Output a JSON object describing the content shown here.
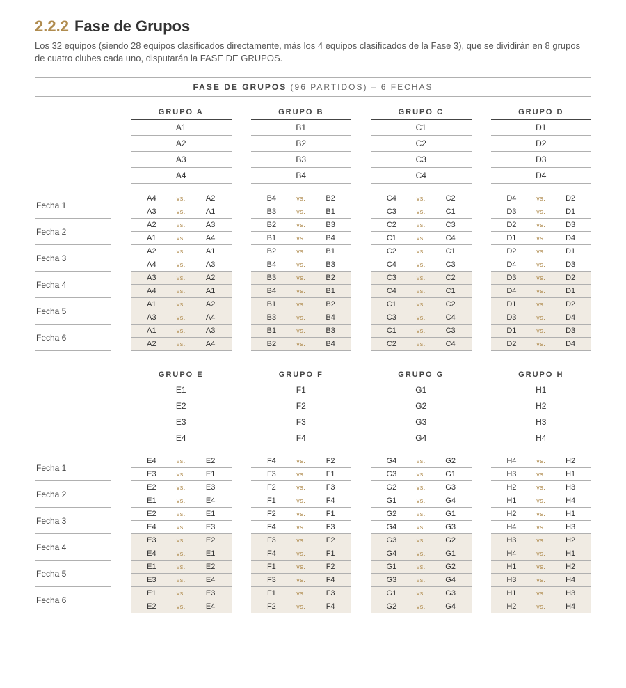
{
  "heading_number": "2.2.2",
  "heading_title": "Fase de Grupos",
  "intro": "Los 32 equipos (siendo 28 equipos clasificados directamente, más los 4 equipos clasificados de la Fase 3), que se dividirán en 8 grupos de cuatro clubes cada uno, disputarán la FASE DE GRUPOS.",
  "banner_strong": "FASE DE GRUPOS",
  "banner_rest": " (96 PARTIDOS) – 6 FECHAS",
  "vs_label": "vs.",
  "fecha_prefix": "Fecha ",
  "blocks": [
    {
      "groups": [
        {
          "name": "GRUPO A",
          "teams": [
            "A1",
            "A2",
            "A3",
            "A4"
          ]
        },
        {
          "name": "GRUPO B",
          "teams": [
            "B1",
            "B2",
            "B3",
            "B4"
          ]
        },
        {
          "name": "GRUPO C",
          "teams": [
            "C1",
            "C2",
            "C3",
            "C4"
          ]
        },
        {
          "name": "GRUPO D",
          "teams": [
            "D1",
            "D2",
            "D3",
            "D4"
          ]
        }
      ],
      "fechas": [
        {
          "label": "Fecha 1",
          "rows": [
            [
              [
                "A4",
                "A2"
              ],
              [
                "B4",
                "B2"
              ],
              [
                "C4",
                "C2"
              ],
              [
                "D4",
                "D2"
              ]
            ],
            [
              [
                "A3",
                "A1"
              ],
              [
                "B3",
                "B1"
              ],
              [
                "C3",
                "C1"
              ],
              [
                "D3",
                "D1"
              ]
            ]
          ]
        },
        {
          "label": "Fecha 2",
          "rows": [
            [
              [
                "A2",
                "A3"
              ],
              [
                "B2",
                "B3"
              ],
              [
                "C2",
                "C3"
              ],
              [
                "D2",
                "D3"
              ]
            ],
            [
              [
                "A1",
                "A4"
              ],
              [
                "B1",
                "B4"
              ],
              [
                "C1",
                "C4"
              ],
              [
                "D1",
                "D4"
              ]
            ]
          ]
        },
        {
          "label": "Fecha 3",
          "rows": [
            [
              [
                "A2",
                "A1"
              ],
              [
                "B2",
                "B1"
              ],
              [
                "C2",
                "C1"
              ],
              [
                "D2",
                "D1"
              ]
            ],
            [
              [
                "A4",
                "A3"
              ],
              [
                "B4",
                "B3"
              ],
              [
                "C4",
                "C3"
              ],
              [
                "D4",
                "D3"
              ]
            ]
          ]
        },
        {
          "label": "Fecha 4",
          "shaded": true,
          "rows": [
            [
              [
                "A3",
                "A2"
              ],
              [
                "B3",
                "B2"
              ],
              [
                "C3",
                "C2"
              ],
              [
                "D3",
                "D2"
              ]
            ],
            [
              [
                "A4",
                "A1"
              ],
              [
                "B4",
                "B1"
              ],
              [
                "C4",
                "C1"
              ],
              [
                "D4",
                "D1"
              ]
            ]
          ]
        },
        {
          "label": "Fecha 5",
          "shaded": true,
          "rows": [
            [
              [
                "A1",
                "A2"
              ],
              [
                "B1",
                "B2"
              ],
              [
                "C1",
                "C2"
              ],
              [
                "D1",
                "D2"
              ]
            ],
            [
              [
                "A3",
                "A4"
              ],
              [
                "B3",
                "B4"
              ],
              [
                "C3",
                "C4"
              ],
              [
                "D3",
                "D4"
              ]
            ]
          ]
        },
        {
          "label": "Fecha 6",
          "shaded": true,
          "rows": [
            [
              [
                "A1",
                "A3"
              ],
              [
                "B1",
                "B3"
              ],
              [
                "C1",
                "C3"
              ],
              [
                "D1",
                "D3"
              ]
            ],
            [
              [
                "A2",
                "A4"
              ],
              [
                "B2",
                "B4"
              ],
              [
                "C2",
                "C4"
              ],
              [
                "D2",
                "D4"
              ]
            ]
          ]
        }
      ]
    },
    {
      "groups": [
        {
          "name": "GRUPO E",
          "teams": [
            "E1",
            "E2",
            "E3",
            "E4"
          ]
        },
        {
          "name": "GRUPO F",
          "teams": [
            "F1",
            "F2",
            "F3",
            "F4"
          ]
        },
        {
          "name": "GRUPO G",
          "teams": [
            "G1",
            "G2",
            "G3",
            "G4"
          ]
        },
        {
          "name": "GRUPO H",
          "teams": [
            "H1",
            "H2",
            "H3",
            "H4"
          ]
        }
      ],
      "fechas": [
        {
          "label": "Fecha 1",
          "rows": [
            [
              [
                "E4",
                "E2"
              ],
              [
                "F4",
                "F2"
              ],
              [
                "G4",
                "G2"
              ],
              [
                "H4",
                "H2"
              ]
            ],
            [
              [
                "E3",
                "E1"
              ],
              [
                "F3",
                "F1"
              ],
              [
                "G3",
                "G1"
              ],
              [
                "H3",
                "H1"
              ]
            ]
          ]
        },
        {
          "label": "Fecha 2",
          "rows": [
            [
              [
                "E2",
                "E3"
              ],
              [
                "F2",
                "F3"
              ],
              [
                "G2",
                "G3"
              ],
              [
                "H2",
                "H3"
              ]
            ],
            [
              [
                "E1",
                "E4"
              ],
              [
                "F1",
                "F4"
              ],
              [
                "G1",
                "G4"
              ],
              [
                "H1",
                "H4"
              ]
            ]
          ]
        },
        {
          "label": "Fecha 3",
          "rows": [
            [
              [
                "E2",
                "E1"
              ],
              [
                "F2",
                "F1"
              ],
              [
                "G2",
                "G1"
              ],
              [
                "H2",
                "H1"
              ]
            ],
            [
              [
                "E4",
                "E3"
              ],
              [
                "F4",
                "F3"
              ],
              [
                "G4",
                "G3"
              ],
              [
                "H4",
                "H3"
              ]
            ]
          ]
        },
        {
          "label": "Fecha 4",
          "shaded": true,
          "rows": [
            [
              [
                "E3",
                "E2"
              ],
              [
                "F3",
                "F2"
              ],
              [
                "G3",
                "G2"
              ],
              [
                "H3",
                "H2"
              ]
            ],
            [
              [
                "E4",
                "E1"
              ],
              [
                "F4",
                "F1"
              ],
              [
                "G4",
                "G1"
              ],
              [
                "H4",
                "H1"
              ]
            ]
          ]
        },
        {
          "label": "Fecha 5",
          "shaded": true,
          "rows": [
            [
              [
                "E1",
                "E2"
              ],
              [
                "F1",
                "F2"
              ],
              [
                "G1",
                "G2"
              ],
              [
                "H1",
                "H2"
              ]
            ],
            [
              [
                "E3",
                "E4"
              ],
              [
                "F3",
                "F4"
              ],
              [
                "G3",
                "G4"
              ],
              [
                "H3",
                "H4"
              ]
            ]
          ]
        },
        {
          "label": "Fecha 6",
          "shaded": true,
          "rows": [
            [
              [
                "E1",
                "E3"
              ],
              [
                "F1",
                "F3"
              ],
              [
                "G1",
                "G3"
              ],
              [
                "H1",
                "H3"
              ]
            ],
            [
              [
                "E2",
                "E4"
              ],
              [
                "F2",
                "F4"
              ],
              [
                "G2",
                "G4"
              ],
              [
                "H2",
                "H4"
              ]
            ]
          ]
        }
      ]
    }
  ]
}
